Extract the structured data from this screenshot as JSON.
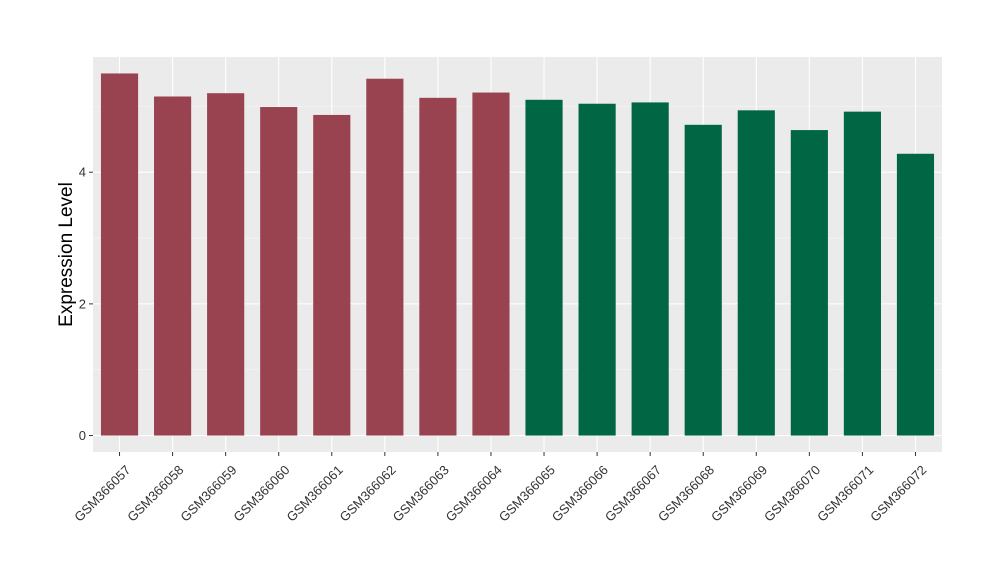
{
  "chart_data": {
    "type": "bar",
    "title": "",
    "xlabel": "",
    "ylabel": "Expression Level",
    "ylim": [
      -0.25,
      5.75
    ],
    "yticks": [
      0,
      2,
      4
    ],
    "grid": true,
    "legend": "none",
    "panel_background": "#ebebeb",
    "categories": [
      "GSM366057",
      "GSM366058",
      "GSM366059",
      "GSM366060",
      "GSM366061",
      "GSM366062",
      "GSM366063",
      "GSM366064",
      "GSM366065",
      "GSM366066",
      "GSM366067",
      "GSM366068",
      "GSM366069",
      "GSM366070",
      "GSM366071",
      "GSM366072"
    ],
    "values": [
      5.5,
      5.15,
      5.2,
      4.99,
      4.87,
      5.42,
      5.13,
      5.21,
      5.1,
      5.04,
      5.06,
      4.72,
      4.94,
      4.64,
      4.92,
      4.28
    ],
    "colors": [
      "#9a4350",
      "#9a4350",
      "#9a4350",
      "#9a4350",
      "#9a4350",
      "#9a4350",
      "#9a4350",
      "#9a4350",
      "#006644",
      "#006644",
      "#006644",
      "#006644",
      "#006644",
      "#006644",
      "#006644",
      "#006644"
    ]
  }
}
